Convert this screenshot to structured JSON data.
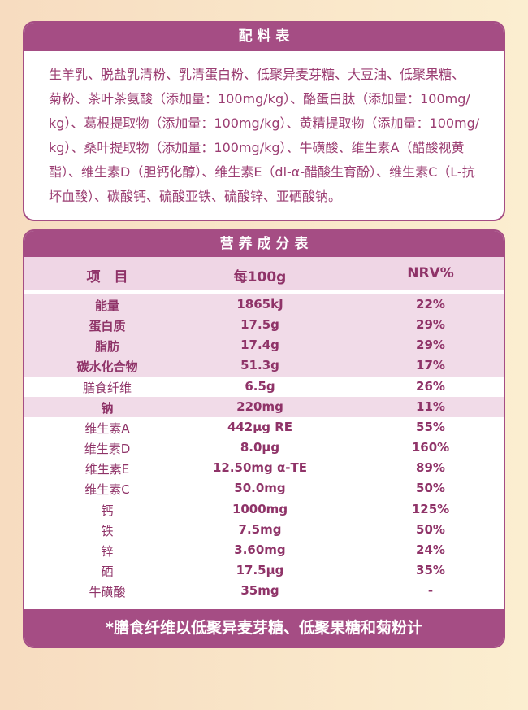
{
  "ingredients": {
    "title": "配 料 表",
    "lines": [
      "生羊乳、脱盐乳清粉、乳清蛋白粉、低聚异麦芽糖、大豆油、低聚果糖、",
      "菊粉、茶叶茶氨酸（添加量：100mg/kg）、酪蛋白肽（添加量：100mg/",
      "kg）、葛根提取物（添加量：100mg/kg）、黄精提取物（添加量：100mg/",
      "kg）、桑叶提取物（添加量：100mg/kg）、牛磺酸、维生素A（醋酸视黄",
      "酯）、维生素D（胆钙化醇）、维生素E（dl-α-醋酸生育酚）、维生素C（L-抗",
      "坏血酸）、碳酸钙、硫酸亚铁、硫酸锌、亚硒酸钠。"
    ]
  },
  "nutrition": {
    "title": "营 养 成 分 表",
    "header": [
      "项　目",
      "每100g",
      "NRV%"
    ],
    "rows": [
      [
        "能量",
        "1865kJ",
        "22%"
      ],
      [
        "蛋白质",
        "17.5g",
        "29%"
      ],
      [
        "脂肪",
        "17.4g",
        "29%"
      ],
      [
        "碳水化合物",
        "51.3g",
        "17%"
      ],
      [
        "膳食纤维",
        "6.5g",
        "26%"
      ],
      [
        "钠",
        "220mg",
        "11%"
      ],
      [
        "维生素A",
        "442μg RE",
        "55%"
      ],
      [
        "维生素D",
        "8.0μg",
        "160%"
      ],
      [
        "维生素E",
        "12.50mg α-TE",
        "89%"
      ],
      [
        "维生素C",
        "50.0mg",
        "50%"
      ],
      [
        "钙",
        "1000mg",
        "125%"
      ],
      [
        "铁",
        "7.5mg",
        "50%"
      ],
      [
        "锌",
        "3.60mg",
        "24%"
      ],
      [
        "硒",
        "17.5μg",
        "35%"
      ],
      [
        "牛磺酸",
        "35mg",
        "-"
      ]
    ],
    "footnote": "*膳食纤维以低聚异麦芽糖、低聚果糖和菊粉计"
  }
}
